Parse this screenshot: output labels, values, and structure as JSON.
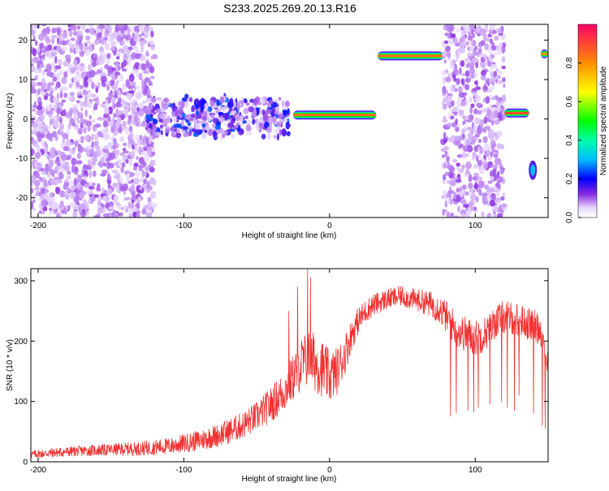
{
  "title": "S233.2025.269.20.13.R16",
  "chart_data": [
    {
      "type": "heatmap",
      "name": "spectrogram",
      "xlabel": "Height of straight line (km)",
      "ylabel": "Frequency (Hz)",
      "xlim": [
        -205,
        150
      ],
      "ylim": [
        -25,
        24
      ],
      "xticks": [
        -200,
        -100,
        0,
        100
      ],
      "xtick_labels": [
        "-200",
        "-100",
        "0",
        "100"
      ],
      "yticks": [
        -20,
        -10,
        0,
        10,
        20
      ],
      "ytick_labels": [
        "-20",
        "-10",
        "0",
        "10",
        "20"
      ],
      "colorbar": {
        "label": "Normalized spectral amplitude",
        "range": [
          0,
          1
        ],
        "ticks": [
          0.0,
          0.2,
          0.4,
          0.6,
          0.8
        ],
        "tick_labels": [
          "0.0",
          "0.2",
          "0.4",
          "0.6",
          "0.8"
        ]
      },
      "features": [
        {
          "kind": "noise",
          "x": [
            -205,
            -120
          ],
          "y": [
            -25,
            24
          ],
          "amplitude": 0.12
        },
        {
          "kind": "scatter_band",
          "x": [
            -125,
            -28
          ],
          "y": [
            -5,
            6
          ],
          "amplitude": 0.25
        },
        {
          "kind": "line",
          "x": [
            -25,
            32
          ],
          "y": 1,
          "amplitude": 0.85
        },
        {
          "kind": "line",
          "x": [
            33,
            78
          ],
          "y": 16,
          "amplitude": 0.85
        },
        {
          "kind": "noise",
          "x": [
            78,
            120
          ],
          "y": [
            -25,
            24
          ],
          "amplitude": 0.12
        },
        {
          "kind": "line",
          "x": [
            120,
            137
          ],
          "y": 1.5,
          "amplitude": 0.9
        },
        {
          "kind": "blob",
          "x": [
            137,
            142
          ],
          "y": -13,
          "amplitude": 0.3
        },
        {
          "kind": "line",
          "x": [
            145,
            150
          ],
          "y": 16.5,
          "amplitude": 0.8
        }
      ]
    },
    {
      "type": "line",
      "name": "snr",
      "xlabel": "Height of straight line (km)",
      "ylabel": "SNR (10 * v/v)",
      "xlim": [
        -205,
        150
      ],
      "ylim": [
        0,
        320
      ],
      "xticks": [
        -200,
        -100,
        0,
        100
      ],
      "xtick_labels": [
        "-200",
        "-100",
        "0",
        "100"
      ],
      "yticks": [
        0,
        100,
        200,
        300
      ],
      "ytick_labels": [
        "0",
        "100",
        "200",
        "300"
      ],
      "color": "#f03030",
      "x": [
        -205,
        -190,
        -170,
        -150,
        -130,
        -110,
        -90,
        -75,
        -60,
        -50,
        -40,
        -30,
        -25,
        -20,
        -15,
        -10,
        -5,
        0,
        5,
        10,
        15,
        20,
        25,
        30,
        35,
        40,
        45,
        50,
        55,
        60,
        65,
        70,
        75,
        80,
        85,
        90,
        95,
        100,
        105,
        110,
        115,
        120,
        125,
        130,
        135,
        140,
        145,
        150
      ],
      "values": [
        12,
        15,
        18,
        20,
        22,
        26,
        35,
        45,
        60,
        75,
        95,
        120,
        140,
        160,
        170,
        165,
        155,
        140,
        150,
        175,
        210,
        235,
        250,
        260,
        265,
        270,
        272,
        275,
        270,
        268,
        265,
        260,
        255,
        240,
        225,
        215,
        210,
        205,
        210,
        220,
        235,
        240,
        238,
        235,
        230,
        225,
        220,
        160
      ],
      "spread": [
        14,
        16,
        18,
        20,
        24,
        28,
        35,
        40,
        45,
        50,
        60,
        70,
        80,
        90,
        100,
        100,
        95,
        90,
        80,
        70,
        55,
        45,
        40,
        38,
        36,
        35,
        35,
        35,
        36,
        38,
        40,
        45,
        50,
        55,
        60,
        60,
        60,
        60,
        60,
        55,
        55,
        55,
        55,
        55,
        55,
        55,
        55,
        50
      ],
      "spikes_up": [
        {
          "x": -15,
          "value": 320
        },
        {
          "x": -13,
          "value": 305
        },
        {
          "x": -28,
          "value": 250
        },
        {
          "x": -22,
          "value": 290
        }
      ],
      "dropouts": [
        {
          "x": 83,
          "value": 75
        },
        {
          "x": 87,
          "value": 80
        },
        {
          "x": 95,
          "value": 85
        },
        {
          "x": 99,
          "value": 82
        },
        {
          "x": 102,
          "value": 90
        },
        {
          "x": 110,
          "value": 95
        },
        {
          "x": 118,
          "value": 100
        },
        {
          "x": 122,
          "value": 90
        },
        {
          "x": 127,
          "value": 85
        },
        {
          "x": 130,
          "value": 110
        },
        {
          "x": 140,
          "value": 80
        },
        {
          "x": 146,
          "value": 60
        },
        {
          "x": 148,
          "value": 55
        }
      ]
    }
  ]
}
